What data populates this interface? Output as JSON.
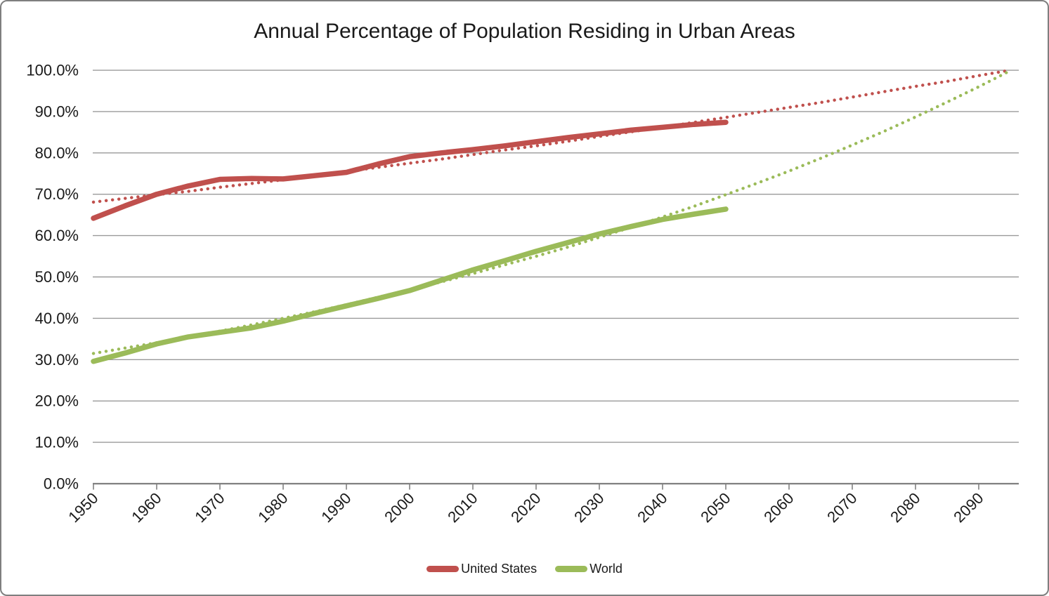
{
  "frame": {
    "background_color": "#FFFFFF",
    "border_color": "#7F7F7F",
    "gridline_color": "#9A9A9A",
    "axis_line_color": "#808080",
    "text_color": "#1A1A1A"
  },
  "chart_data": {
    "type": "line",
    "title": "Annual Percentage of Population Residing in Urban Areas",
    "xlabel": "",
    "ylabel": "",
    "ylim": [
      0,
      100
    ],
    "x_range_years": [
      1950,
      2096
    ],
    "grid": "horizontal-only",
    "legend_position": "bottom-center",
    "y_tick_labels": [
      "0.0%",
      "10.0%",
      "20.0%",
      "30.0%",
      "40.0%",
      "50.0%",
      "60.0%",
      "70.0%",
      "80.0%",
      "90.0%",
      "100.0%"
    ],
    "x_tick_labels": [
      "1950",
      "1960",
      "1970",
      "1980",
      "1990",
      "2000",
      "2010",
      "2020",
      "2030",
      "2040",
      "2050",
      "2060",
      "2070",
      "2080",
      "2090"
    ],
    "legend": [
      "United States",
      "World"
    ],
    "series": [
      {
        "name": "United States",
        "style": "solid",
        "color": "#C0504D",
        "x": [
          1950,
          1955,
          1960,
          1965,
          1970,
          1975,
          1980,
          1985,
          1990,
          1995,
          2000,
          2005,
          2010,
          2015,
          2020,
          2025,
          2030,
          2035,
          2040,
          2045,
          2050
        ],
        "values": [
          64.2,
          67.2,
          70.0,
          72.0,
          73.6,
          73.8,
          73.7,
          74.5,
          75.3,
          77.3,
          79.1,
          80.0,
          80.8,
          81.7,
          82.7,
          83.7,
          84.6,
          85.5,
          86.2,
          86.9,
          87.4
        ]
      },
      {
        "name": "World",
        "style": "solid",
        "color": "#9BBB59",
        "x": [
          1950,
          1955,
          1960,
          1965,
          1970,
          1975,
          1980,
          1985,
          1990,
          1995,
          2000,
          2005,
          2010,
          2015,
          2020,
          2025,
          2030,
          2035,
          2040,
          2045,
          2050
        ],
        "values": [
          29.6,
          31.6,
          33.8,
          35.5,
          36.6,
          37.7,
          39.3,
          41.2,
          43.0,
          44.8,
          46.7,
          49.2,
          51.7,
          53.9,
          56.2,
          58.3,
          60.4,
          62.2,
          63.9,
          65.2,
          66.4
        ]
      },
      {
        "name": "United States trend",
        "style": "dotted",
        "color": "#C0504D",
        "x": [
          1950,
          1955,
          1960,
          1965,
          1970,
          1975,
          1980,
          1985,
          1990,
          1995,
          2000,
          2005,
          2010,
          2015,
          2020,
          2025,
          2030,
          2035,
          2040,
          2045,
          2050,
          2055,
          2060,
          2065,
          2070,
          2075,
          2080,
          2085,
          2090,
          2095
        ],
        "values": [
          68.1,
          69.0,
          69.9,
          70.7,
          71.7,
          72.6,
          73.5,
          74.5,
          75.5,
          76.5,
          77.5,
          78.5,
          79.6,
          80.7,
          81.7,
          82.8,
          84.0,
          85.1,
          86.2,
          87.4,
          88.6,
          89.8,
          91.0,
          92.2,
          93.5,
          94.8,
          96.1,
          97.3,
          98.7,
          100.0
        ]
      },
      {
        "name": "World trend",
        "style": "dotted",
        "color": "#9BBB59",
        "x": [
          1950,
          1955,
          1960,
          1965,
          1970,
          1975,
          1980,
          1985,
          1990,
          1995,
          2000,
          2005,
          2010,
          2015,
          2020,
          2025,
          2030,
          2035,
          2040,
          2045,
          2050,
          2055,
          2060,
          2065,
          2070,
          2075,
          2080,
          2085,
          2090,
          2095
        ],
        "values": [
          31.5,
          32.8,
          34.1,
          35.5,
          36.9,
          38.4,
          40.0,
          41.6,
          43.3,
          45.1,
          46.9,
          48.8,
          50.8,
          52.9,
          55.0,
          57.2,
          59.6,
          62.0,
          64.5,
          67.1,
          69.9,
          72.7,
          75.6,
          78.7,
          81.9,
          85.2,
          88.7,
          92.3,
          96.0,
          99.9
        ]
      }
    ]
  }
}
